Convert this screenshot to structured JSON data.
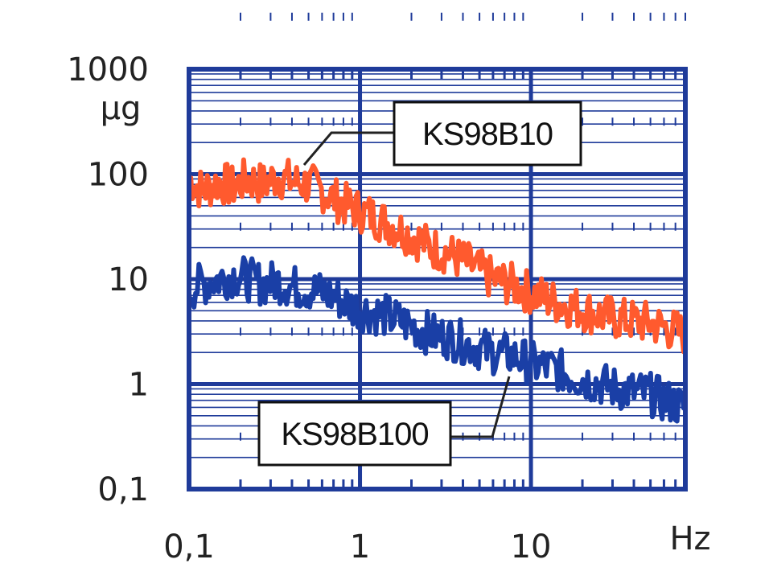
{
  "chart_data": {
    "type": "line",
    "x_scale": "log",
    "y_scale": "log",
    "xlim": [
      0.1,
      80
    ],
    "ylim": [
      0.1,
      1000
    ],
    "x_ticks": [
      {
        "value": 0.1,
        "label": "0,1"
      },
      {
        "value": 1,
        "label": "1"
      },
      {
        "value": 10,
        "label": "10"
      }
    ],
    "y_ticks": [
      {
        "value": 0.1,
        "label": "0,1"
      },
      {
        "value": 1,
        "label": "1"
      },
      {
        "value": 10,
        "label": "10"
      },
      {
        "value": 100,
        "label": "100"
      },
      {
        "value": 1000,
        "label": "1000"
      }
    ],
    "x_unit": "Hz",
    "y_unit": "µg",
    "grid": true,
    "grid_color": "#1f3b9a",
    "series": [
      {
        "name": "KS98B10",
        "color": "#ff5a2e",
        "x": [
          0.1,
          0.12,
          0.15,
          0.18,
          0.22,
          0.27,
          0.33,
          0.4,
          0.5,
          0.6,
          0.75,
          0.9,
          1.1,
          1.4,
          1.7,
          2.1,
          2.6,
          3.2,
          4,
          5,
          6,
          7.5,
          9,
          11,
          14,
          17,
          21,
          26,
          32,
          40,
          50,
          60,
          70,
          80
        ],
        "values": [
          90,
          70,
          85,
          75,
          90,
          80,
          95,
          85,
          80,
          70,
          55,
          48,
          42,
          35,
          30,
          25,
          20,
          18,
          15,
          12,
          10,
          9,
          8,
          7,
          6,
          5.5,
          5,
          4.5,
          4.2,
          4,
          3.8,
          3.5,
          3.2,
          3
        ]
      },
      {
        "name": "KS98B100",
        "color": "#1a3fa6",
        "x": [
          0.1,
          0.12,
          0.15,
          0.18,
          0.22,
          0.27,
          0.33,
          0.4,
          0.5,
          0.6,
          0.75,
          0.9,
          1.1,
          1.4,
          1.7,
          2.1,
          2.6,
          3.2,
          4,
          5,
          6,
          7.5,
          9,
          11,
          14,
          17,
          21,
          26,
          32,
          40,
          50,
          60,
          70,
          80
        ],
        "values": [
          8,
          9,
          10,
          11,
          10,
          9,
          9.5,
          8.5,
          8,
          7.5,
          6.5,
          5.5,
          5,
          4.5,
          4,
          3.5,
          3,
          2.8,
          2.5,
          2.2,
          2,
          1.9,
          1.7,
          1.5,
          1.4,
          1.2,
          1.1,
          1,
          0.9,
          0.85,
          0.8,
          0.7,
          0.65,
          0.6
        ]
      }
    ],
    "annotations": [
      {
        "text": "KS98B10",
        "series": "KS98B10"
      },
      {
        "text": "KS98B100",
        "series": "KS98B100"
      }
    ]
  }
}
